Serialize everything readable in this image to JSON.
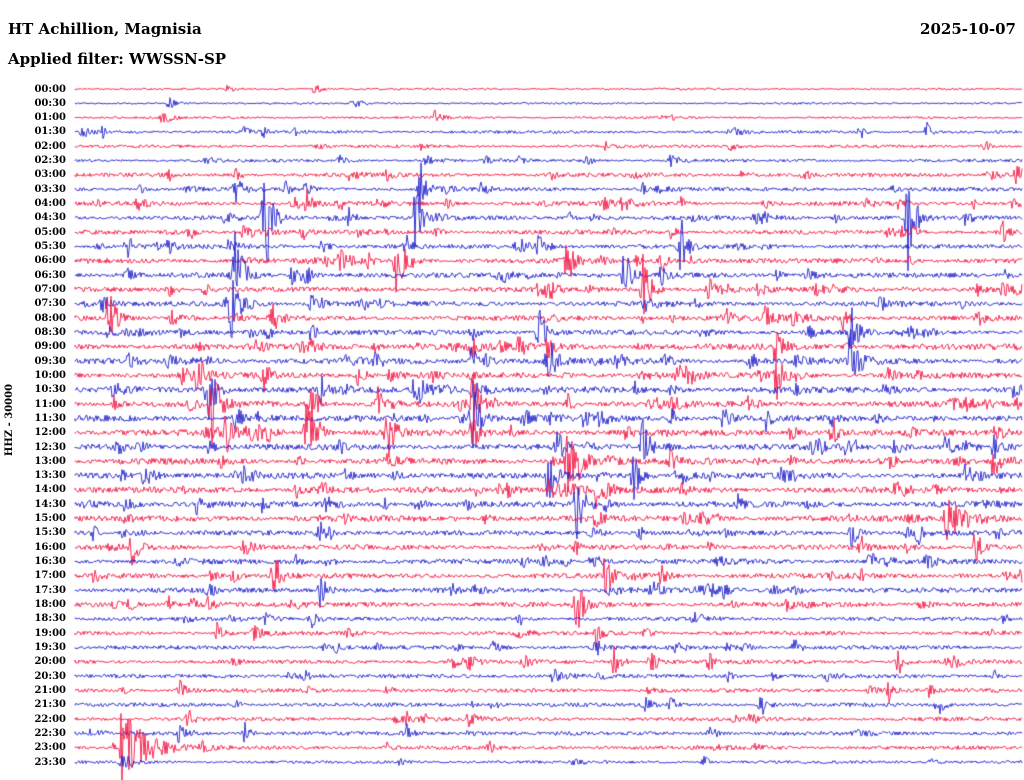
{
  "header": {
    "station": "HT Achillion, Magnisia",
    "date": "2025-10-07",
    "filter_line": "Applied filter: WWSSN-SP"
  },
  "chart_data": {
    "type": "line",
    "subtype": "helicorder-seismogram",
    "title": "HT Achillion, Magnisia",
    "date": "2025-10-07",
    "filter": "WWSSN-SP",
    "ylabel": "HHZ - 30000",
    "row_interval_minutes": 30,
    "x_range": [
      "00:00",
      "24:00"
    ],
    "grid": false,
    "legend": "none",
    "colors": {
      "red": "#f31845",
      "blue": "#2222cc"
    },
    "rows": [
      {
        "label": "00:00",
        "color": "red",
        "base": 1.0,
        "clutter": 2,
        "events": []
      },
      {
        "label": "00:30",
        "color": "blue",
        "base": 1.0,
        "clutter": 2,
        "events": []
      },
      {
        "label": "01:00",
        "color": "red",
        "base": 1.2,
        "clutter": 3,
        "events": [
          [
            0.62,
            3,
            0.006
          ]
        ]
      },
      {
        "label": "01:30",
        "color": "blue",
        "base": 1.5,
        "clutter": 4,
        "events": [
          [
            0.03,
            5,
            0.005
          ],
          [
            0.2,
            6,
            0.004
          ],
          [
            0.83,
            9,
            0.004
          ],
          [
            0.9,
            9,
            0.004
          ]
        ]
      },
      {
        "label": "02:00",
        "color": "red",
        "base": 1.5,
        "clutter": 4,
        "events": [
          [
            0.56,
            4,
            0.005
          ]
        ]
      },
      {
        "label": "02:30",
        "color": "blue",
        "base": 1.5,
        "clutter": 5,
        "events": [
          [
            0.28,
            5,
            0.006
          ],
          [
            0.47,
            4,
            0.005
          ]
        ]
      },
      {
        "label": "03:00",
        "color": "red",
        "base": 2.0,
        "clutter": 8,
        "events": [
          [
            0.17,
            6,
            0.006
          ],
          [
            0.33,
            5,
            0.005
          ],
          [
            0.59,
            5,
            0.005
          ],
          [
            0.77,
            6,
            0.005
          ]
        ]
      },
      {
        "label": "03:30",
        "color": "blue",
        "base": 2.0,
        "clutter": 8,
        "events": [
          [
            0.17,
            9,
            0.006
          ],
          [
            0.365,
            28,
            0.006
          ],
          [
            0.43,
            7,
            0.005
          ],
          [
            0.6,
            6,
            0.004
          ]
        ]
      },
      {
        "label": "04:00",
        "color": "red",
        "base": 2.2,
        "clutter": 10,
        "events": [
          [
            0.245,
            12,
            0.006
          ],
          [
            0.28,
            7,
            0.005
          ],
          [
            0.56,
            6,
            0.005
          ],
          [
            0.73,
            7,
            0.004
          ],
          [
            0.87,
            7,
            0.005
          ],
          [
            0.95,
            6,
            0.004
          ]
        ]
      },
      {
        "label": "04:30",
        "color": "blue",
        "base": 2.2,
        "clutter": 10,
        "events": [
          [
            0.2,
            80,
            0.006
          ],
          [
            0.29,
            10,
            0.005
          ],
          [
            0.36,
            34,
            0.006
          ],
          [
            0.52,
            8,
            0.005
          ],
          [
            0.88,
            60,
            0.006
          ]
        ]
      },
      {
        "label": "05:00",
        "color": "red",
        "base": 2.2,
        "clutter": 10,
        "events": [
          [
            0.24,
            9,
            0.005
          ],
          [
            0.3,
            7,
            0.005
          ],
          [
            0.63,
            8,
            0.004
          ],
          [
            0.86,
            9,
            0.005
          ],
          [
            0.98,
            11,
            0.005
          ]
        ]
      },
      {
        "label": "05:30",
        "color": "blue",
        "base": 2.2,
        "clutter": 10,
        "events": [
          [
            0.055,
            13,
            0.006
          ],
          [
            0.1,
            7,
            0.004
          ],
          [
            0.35,
            11,
            0.005
          ],
          [
            0.64,
            30,
            0.006
          ]
        ]
      },
      {
        "label": "06:00",
        "color": "red",
        "base": 2.5,
        "clutter": 12,
        "events": [
          [
            0.34,
            36,
            0.008
          ],
          [
            0.52,
            26,
            0.006
          ],
          [
            0.62,
            11,
            0.005
          ]
        ]
      },
      {
        "label": "06:30",
        "color": "blue",
        "base": 2.5,
        "clutter": 12,
        "events": [
          [
            0.17,
            45,
            0.007
          ],
          [
            0.23,
            11,
            0.005
          ],
          [
            0.58,
            30,
            0.006
          ],
          [
            0.62,
            14,
            0.005
          ]
        ]
      },
      {
        "label": "07:00",
        "color": "red",
        "base": 2.5,
        "clutter": 12,
        "events": [
          [
            0.1,
            9,
            0.005
          ],
          [
            0.5,
            9,
            0.005
          ],
          [
            0.6,
            36,
            0.007
          ],
          [
            0.67,
            12,
            0.005
          ]
        ]
      },
      {
        "label": "07:30",
        "color": "blue",
        "base": 2.5,
        "clutter": 12,
        "events": [
          [
            0.03,
            10,
            0.005
          ],
          [
            0.165,
            30,
            0.007
          ],
          [
            0.25,
            11,
            0.005
          ],
          [
            0.32,
            9,
            0.005
          ]
        ]
      },
      {
        "label": "08:00",
        "color": "red",
        "base": 2.5,
        "clutter": 12,
        "events": [
          [
            0.035,
            30,
            0.006
          ],
          [
            0.21,
            12,
            0.005
          ],
          [
            0.73,
            22,
            0.006
          ],
          [
            0.81,
            13,
            0.005
          ]
        ]
      },
      {
        "label": "08:30",
        "color": "blue",
        "base": 2.5,
        "clutter": 12,
        "events": [
          [
            0.25,
            10,
            0.005
          ],
          [
            0.42,
            10,
            0.005
          ],
          [
            0.49,
            26,
            0.006
          ],
          [
            0.82,
            27,
            0.006
          ]
        ]
      },
      {
        "label": "09:00",
        "color": "red",
        "base": 3.0,
        "clutter": 14,
        "events": [
          [
            0.42,
            13,
            0.005
          ],
          [
            0.47,
            15,
            0.005
          ],
          [
            0.5,
            12,
            0.005
          ],
          [
            0.74,
            16,
            0.006
          ]
        ]
      },
      {
        "label": "09:30",
        "color": "blue",
        "base": 3.0,
        "clutter": 14,
        "events": [
          [
            0.42,
            20,
            0.006
          ],
          [
            0.5,
            32,
            0.006
          ],
          [
            0.82,
            32,
            0.007
          ]
        ]
      },
      {
        "label": "10:00",
        "color": "red",
        "base": 3.0,
        "clutter": 14,
        "events": [
          [
            0.13,
            22,
            0.006
          ],
          [
            0.2,
            16,
            0.005
          ],
          [
            0.3,
            13,
            0.005
          ],
          [
            0.64,
            11,
            0.005
          ],
          [
            0.74,
            26,
            0.006
          ],
          [
            0.86,
            9,
            0.005
          ]
        ]
      },
      {
        "label": "10:30",
        "color": "blue",
        "base": 3.0,
        "clutter": 14,
        "events": [
          [
            0.14,
            36,
            0.007
          ],
          [
            0.26,
            16,
            0.005
          ],
          [
            0.36,
            30,
            0.006
          ],
          [
            0.42,
            16,
            0.005
          ]
        ]
      },
      {
        "label": "11:00",
        "color": "red",
        "base": 3.0,
        "clutter": 14,
        "events": [
          [
            0.145,
            42,
            0.007
          ],
          [
            0.25,
            20,
            0.006
          ],
          [
            0.32,
            16,
            0.005
          ],
          [
            0.42,
            30,
            0.006
          ],
          [
            0.52,
            11,
            0.005
          ]
        ]
      },
      {
        "label": "11:30",
        "color": "blue",
        "base": 3.0,
        "clutter": 14,
        "events": [
          [
            0.17,
            16,
            0.005
          ],
          [
            0.42,
            36,
            0.007
          ],
          [
            0.63,
            13,
            0.005
          ],
          [
            0.73,
            12,
            0.005
          ]
        ]
      },
      {
        "label": "12:00",
        "color": "red",
        "base": 3.0,
        "clutter": 14,
        "events": [
          [
            0.16,
            20,
            0.006
          ],
          [
            0.245,
            36,
            0.007
          ],
          [
            0.33,
            30,
            0.007
          ],
          [
            0.42,
            20,
            0.005
          ],
          [
            0.8,
            16,
            0.005
          ],
          [
            0.88,
            11,
            0.005
          ]
        ]
      },
      {
        "label": "12:30",
        "color": "blue",
        "base": 3.0,
        "clutter": 14,
        "events": [
          [
            0.51,
            16,
            0.005
          ],
          [
            0.6,
            30,
            0.006
          ],
          [
            0.92,
            16,
            0.005
          ],
          [
            0.97,
            12,
            0.005
          ]
        ]
      },
      {
        "label": "13:00",
        "color": "red",
        "base": 3.0,
        "clutter": 14,
        "events": [
          [
            0.52,
            30,
            0.006
          ],
          [
            0.63,
            13,
            0.005
          ],
          [
            0.97,
            20,
            0.006
          ]
        ]
      },
      {
        "label": "13:30",
        "color": "blue",
        "base": 3.0,
        "clutter": 14,
        "events": [
          [
            0.5,
            26,
            0.006
          ],
          [
            0.59,
            26,
            0.006
          ],
          [
            0.94,
            16,
            0.005
          ]
        ]
      },
      {
        "label": "14:00",
        "color": "red",
        "base": 3.0,
        "clutter": 12,
        "events": [
          [
            0.26,
            13,
            0.005
          ],
          [
            0.5,
            16,
            0.02
          ],
          [
            0.55,
            16,
            0.006
          ]
        ]
      },
      {
        "label": "14:30",
        "color": "blue",
        "base": 3.0,
        "clutter": 12,
        "events": [
          [
            0.13,
            11,
            0.005
          ],
          [
            0.53,
            34,
            0.007
          ],
          [
            0.7,
            10,
            0.005
          ]
        ]
      },
      {
        "label": "15:00",
        "color": "red",
        "base": 3.0,
        "clutter": 12,
        "events": [
          [
            0.55,
            11,
            0.005
          ],
          [
            0.92,
            18,
            0.025
          ]
        ]
      },
      {
        "label": "15:30",
        "color": "blue",
        "base": 2.5,
        "clutter": 10,
        "events": [
          [
            0.02,
            9,
            0.004
          ],
          [
            0.26,
            9,
            0.005
          ],
          [
            0.82,
            16,
            0.006
          ],
          [
            0.89,
            13,
            0.005
          ]
        ]
      },
      {
        "label": "16:00",
        "color": "red",
        "base": 2.5,
        "clutter": 10,
        "events": [
          [
            0.06,
            16,
            0.005
          ],
          [
            0.83,
            11,
            0.005
          ],
          [
            0.95,
            13,
            0.005
          ]
        ]
      },
      {
        "label": "16:30",
        "color": "blue",
        "base": 2.5,
        "clutter": 10,
        "events": [
          [
            0.55,
            9,
            0.005
          ],
          [
            0.84,
            11,
            0.005
          ],
          [
            0.9,
            11,
            0.005
          ]
        ]
      },
      {
        "label": "17:00",
        "color": "red",
        "base": 2.5,
        "clutter": 10,
        "events": [
          [
            0.21,
            27,
            0.006
          ],
          [
            0.56,
            22,
            0.006
          ],
          [
            0.62,
            11,
            0.005
          ]
        ]
      },
      {
        "label": "17:30",
        "color": "blue",
        "base": 2.5,
        "clutter": 10,
        "events": [
          [
            0.14,
            11,
            0.005
          ],
          [
            0.26,
            20,
            0.006
          ],
          [
            0.61,
            16,
            0.005
          ]
        ]
      },
      {
        "label": "18:00",
        "color": "red",
        "base": 2.5,
        "clutter": 10,
        "events": [
          [
            0.1,
            9,
            0.004
          ],
          [
            0.53,
            27,
            0.006
          ]
        ]
      },
      {
        "label": "18:30",
        "color": "blue",
        "base": 2.0,
        "clutter": 6,
        "events": [
          [
            0.25,
            8,
            0.004
          ],
          [
            0.47,
            8,
            0.005
          ]
        ]
      },
      {
        "label": "19:00",
        "color": "red",
        "base": 2.0,
        "clutter": 6,
        "events": [
          [
            0.15,
            10,
            0.005
          ],
          [
            0.55,
            8,
            0.004
          ]
        ]
      },
      {
        "label": "19:30",
        "color": "blue",
        "base": 2.0,
        "clutter": 8,
        "events": [
          [
            0.55,
            13,
            0.005
          ],
          [
            0.76,
            11,
            0.005
          ]
        ]
      },
      {
        "label": "20:00",
        "color": "red",
        "base": 2.0,
        "clutter": 8,
        "events": [
          [
            0.57,
            16,
            0.006
          ],
          [
            0.67,
            11,
            0.005
          ],
          [
            0.87,
            13,
            0.005
          ]
        ]
      },
      {
        "label": "20:30",
        "color": "blue",
        "base": 2.0,
        "clutter": 6,
        "events": [
          [
            0.69,
            8,
            0.004
          ],
          [
            0.97,
            8,
            0.004
          ]
        ]
      },
      {
        "label": "21:00",
        "color": "red",
        "base": 2.0,
        "clutter": 6,
        "events": [
          [
            0.11,
            14,
            0.005
          ],
          [
            0.86,
            11,
            0.005
          ]
        ]
      },
      {
        "label": "21:30",
        "color": "blue",
        "base": 2.0,
        "clutter": 6,
        "events": [
          [
            0.63,
            8,
            0.004
          ],
          [
            0.91,
            16,
            0.005
          ]
        ]
      },
      {
        "label": "22:00",
        "color": "red",
        "base": 2.0,
        "clutter": 6,
        "events": [
          [
            0.12,
            10,
            0.005
          ],
          [
            0.34,
            7,
            0.004
          ]
        ]
      },
      {
        "label": "22:30",
        "color": "blue",
        "base": 2.0,
        "clutter": 6,
        "events": [
          [
            0.18,
            13,
            0.004
          ],
          [
            0.35,
            9,
            0.005
          ]
        ]
      },
      {
        "label": "23:00",
        "color": "red",
        "base": 2.0,
        "clutter": 5,
        "events": [
          [
            0.05,
            45,
            0.02
          ],
          [
            0.33,
            7,
            0.004
          ]
        ]
      },
      {
        "label": "23:30",
        "color": "blue",
        "base": 1.5,
        "clutter": 4,
        "events": [
          [
            0.05,
            8,
            0.01
          ]
        ]
      }
    ]
  }
}
